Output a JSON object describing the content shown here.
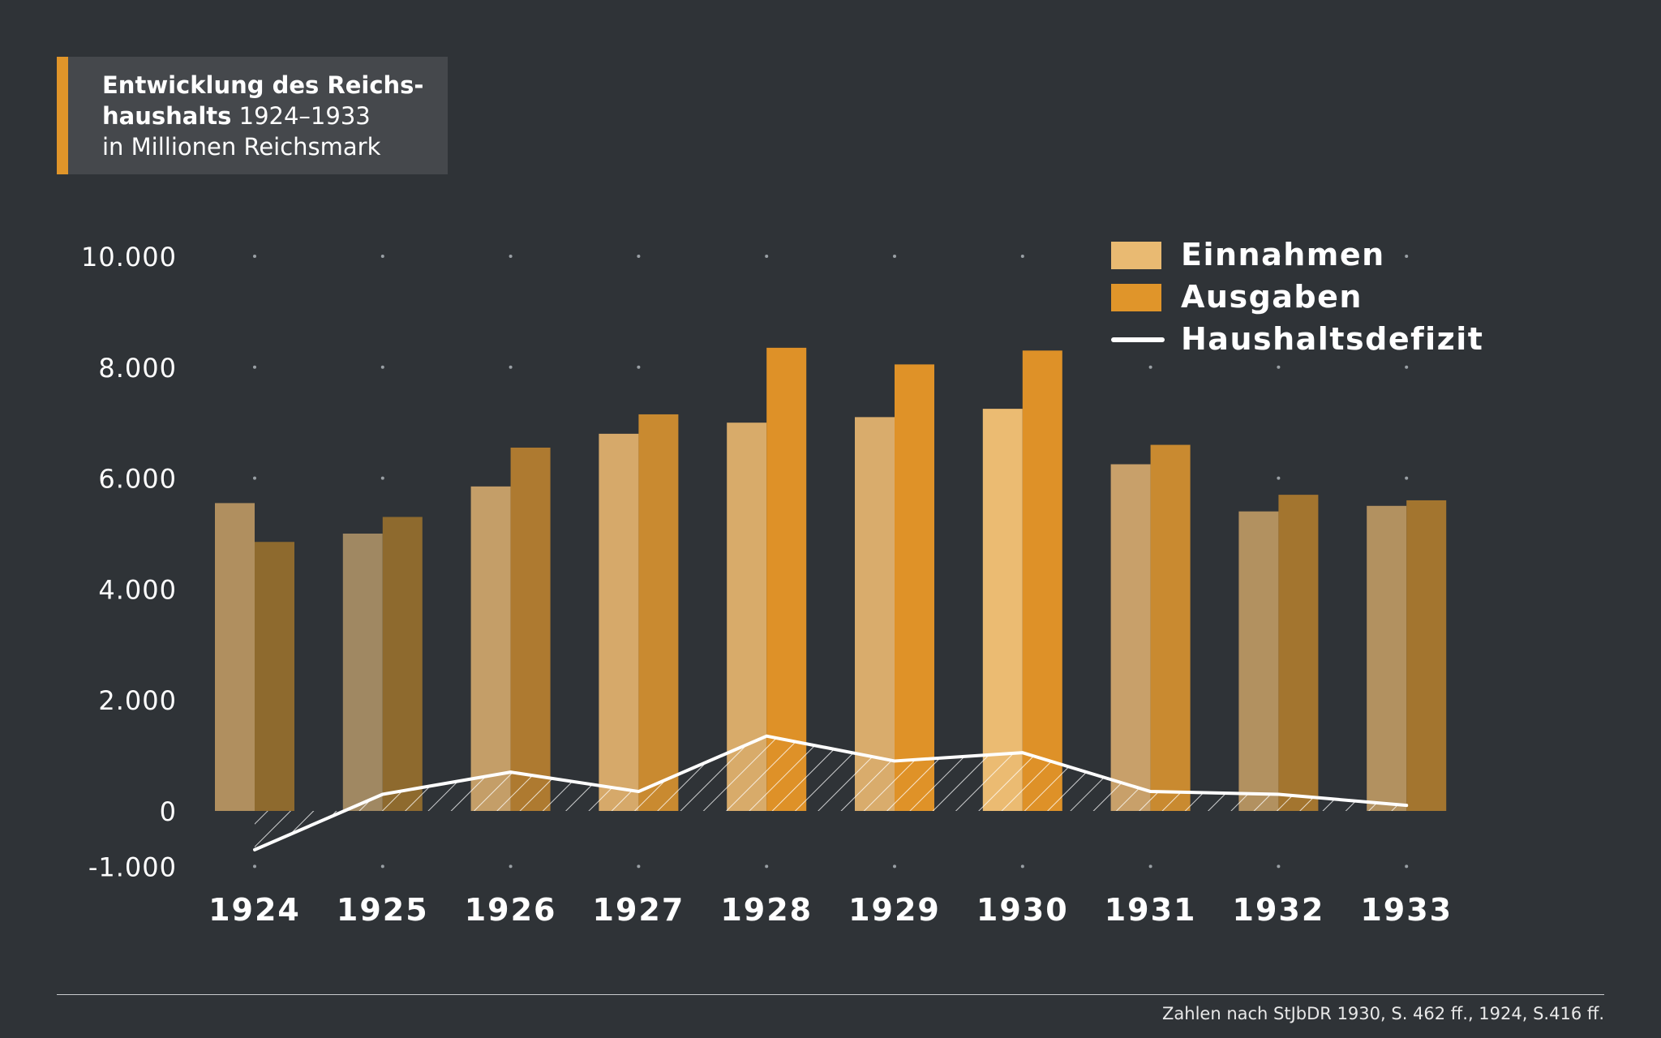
{
  "title": {
    "line1": "Entwicklung des Reichs-",
    "line2_bold": "haushalts",
    "line2_rest": " 1924–1933",
    "line3": "in Millionen Reichsmark"
  },
  "legend": {
    "einnahmen": "Einnahmen",
    "ausgaben": "Ausgaben",
    "defizit": "Haushaltsdefizit"
  },
  "footer": "Zahlen nach StJbDR 1930, S. 462 ff., 1924, S.416 ff.",
  "colors": {
    "background": "#2f3337",
    "einnahmen": "#e9ba72",
    "ausgaben": "#e0952a",
    "defizit": "#ffffff"
  },
  "chart_data": {
    "type": "bar",
    "title": "Entwicklung des Reichshaushalts 1924–1933 in Millionen Reichsmark",
    "categories": [
      "1924",
      "1925",
      "1926",
      "1927",
      "1928",
      "1929",
      "1930",
      "1931",
      "1932",
      "1933"
    ],
    "series": [
      {
        "name": "Einnahmen",
        "type": "bar",
        "values": [
          5550,
          5000,
          5850,
          6800,
          7000,
          7100,
          7250,
          6250,
          5400,
          5500
        ]
      },
      {
        "name": "Ausgaben",
        "type": "bar",
        "values": [
          4850,
          5300,
          6550,
          7150,
          8350,
          8050,
          8300,
          6600,
          5700,
          5600
        ]
      },
      {
        "name": "Haushaltsdefizit",
        "type": "line",
        "values": [
          -700,
          300,
          700,
          350,
          1350,
          900,
          1050,
          350,
          300,
          100
        ]
      }
    ],
    "y_ticks": [
      "10.000",
      "8.000",
      "6.000",
      "4.000",
      "2.000",
      "0",
      "-1.000"
    ],
    "y_tick_values": [
      10000,
      8000,
      6000,
      4000,
      2000,
      0,
      -1000
    ],
    "ylim": [
      -1000,
      10000
    ],
    "grid": "dotted",
    "legend_position": "top-right"
  }
}
